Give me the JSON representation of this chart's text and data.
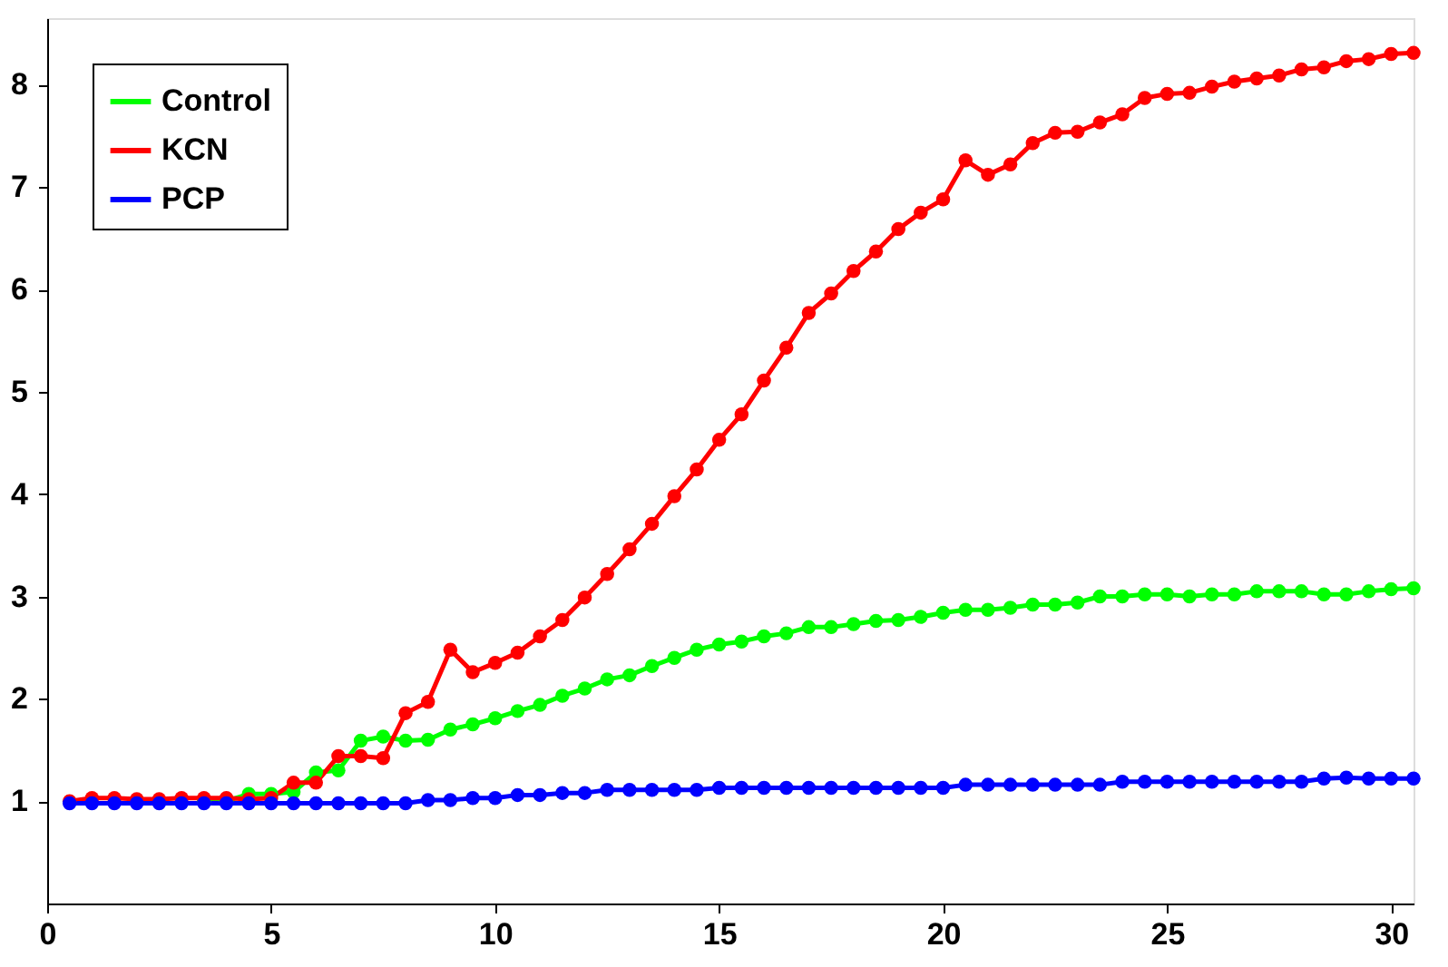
{
  "chart_data": {
    "type": "line",
    "x": [
      0.5,
      1,
      1.5,
      2,
      2.5,
      3,
      3.5,
      4,
      4.5,
      5,
      5.5,
      6,
      6.5,
      7,
      7.5,
      8,
      8.5,
      9,
      9.5,
      10,
      10.5,
      11,
      11.5,
      12,
      12.5,
      13,
      13.5,
      14,
      14.5,
      15,
      15.5,
      16,
      16.5,
      17,
      17.5,
      18,
      18.5,
      19,
      19.5,
      20,
      20.5,
      21,
      21.5,
      22,
      22.5,
      23,
      23.5,
      24,
      24.5,
      25,
      25.5,
      26,
      26.5,
      27,
      27.5,
      28,
      28.5,
      29,
      29.5,
      30,
      30.5
    ],
    "series": [
      {
        "name": "Control",
        "color": "#00ff00",
        "values": [
          null,
          null,
          null,
          null,
          null,
          null,
          1.0,
          1.0,
          1.07,
          1.07,
          1.09,
          1.28,
          1.3,
          1.59,
          1.63,
          1.59,
          1.6,
          1.7,
          1.75,
          1.81,
          1.88,
          1.94,
          2.03,
          2.1,
          2.19,
          2.23,
          2.32,
          2.4,
          2.48,
          2.53,
          2.56,
          2.61,
          2.64,
          2.7,
          2.7,
          2.73,
          2.76,
          2.77,
          2.8,
          2.84,
          2.87,
          2.87,
          2.89,
          2.92,
          2.92,
          2.94,
          3.0,
          3.0,
          3.02,
          3.02,
          3.0,
          3.02,
          3.02,
          3.05,
          3.05,
          3.05,
          3.02,
          3.02,
          3.05,
          3.07,
          3.08
        ]
      },
      {
        "name": "KCN",
        "color": "#ff0000",
        "values": [
          1.0,
          1.03,
          1.03,
          1.02,
          1.02,
          1.03,
          1.03,
          1.03,
          1.02,
          1.03,
          1.18,
          1.18,
          1.44,
          1.44,
          1.42,
          1.86,
          1.97,
          2.48,
          2.26,
          2.35,
          2.45,
          2.61,
          2.77,
          2.99,
          3.22,
          3.46,
          3.71,
          3.98,
          4.24,
          4.53,
          4.78,
          5.11,
          5.43,
          5.77,
          5.96,
          6.18,
          6.37,
          6.59,
          6.75,
          6.88,
          7.26,
          7.12,
          7.22,
          7.43,
          7.53,
          7.54,
          7.63,
          7.71,
          7.87,
          7.91,
          7.92,
          7.98,
          8.03,
          8.06,
          8.09,
          8.15,
          8.17,
          8.23,
          8.25,
          8.3,
          8.31
        ]
      },
      {
        "name": "PCP",
        "color": "#0000ff",
        "values": [
          0.98,
          0.98,
          0.98,
          0.98,
          0.98,
          0.98,
          0.98,
          0.98,
          0.98,
          0.98,
          0.98,
          0.98,
          0.98,
          0.98,
          0.98,
          0.98,
          1.01,
          1.01,
          1.03,
          1.03,
          1.06,
          1.06,
          1.08,
          1.08,
          1.11,
          1.11,
          1.11,
          1.11,
          1.11,
          1.13,
          1.13,
          1.13,
          1.13,
          1.13,
          1.13,
          1.13,
          1.13,
          1.13,
          1.13,
          1.13,
          1.16,
          1.16,
          1.16,
          1.16,
          1.16,
          1.16,
          1.16,
          1.19,
          1.19,
          1.19,
          1.19,
          1.19,
          1.19,
          1.19,
          1.19,
          1.19,
          1.22,
          1.23,
          1.22,
          1.22,
          1.22
        ]
      }
    ],
    "xlim": [
      0,
      30.5
    ],
    "xticks": [
      0,
      5,
      10,
      15,
      20,
      25,
      30
    ],
    "ylim": [
      0,
      8.65
    ],
    "yticks": [
      1,
      2,
      3,
      4,
      5,
      6,
      7,
      8
    ],
    "grid": false,
    "legend": "top left",
    "marker": "circle",
    "line_style": "solid"
  }
}
